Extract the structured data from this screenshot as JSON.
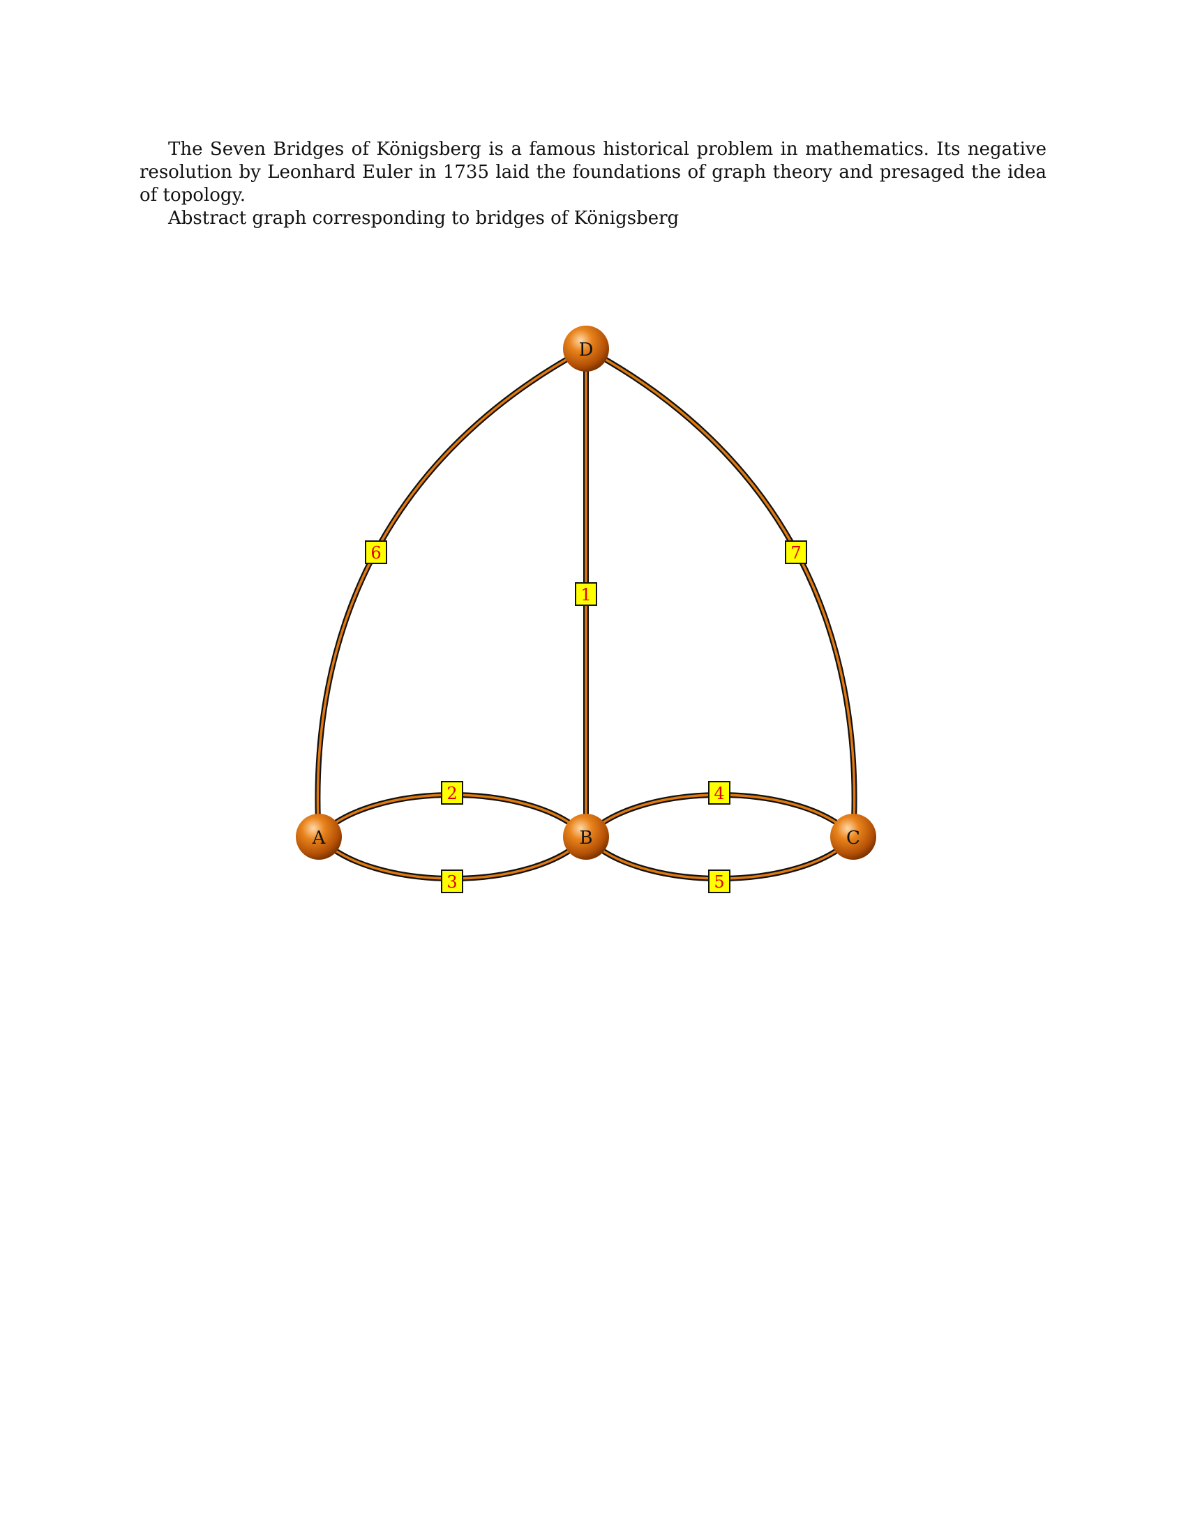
{
  "text": {
    "paragraph1": "The Seven Bridges of Königsberg is a famous historical problem in mathematics. Its negative resolution by Leonhard Euler in 1735 laid the foundations of graph theory and presaged the idea of topology.",
    "paragraph2": "Abstract graph corresponding to bridges of Königsberg"
  },
  "graph": {
    "nodes": [
      {
        "id": "D",
        "label": "D"
      },
      {
        "id": "A",
        "label": "A"
      },
      {
        "id": "B",
        "label": "B"
      },
      {
        "id": "C",
        "label": "C"
      }
    ],
    "bridges": [
      {
        "label": "1",
        "from": "D",
        "to": "B"
      },
      {
        "label": "2",
        "from": "A",
        "to": "B"
      },
      {
        "label": "3",
        "from": "A",
        "to": "B"
      },
      {
        "label": "4",
        "from": "B",
        "to": "C"
      },
      {
        "label": "5",
        "from": "B",
        "to": "C"
      },
      {
        "label": "6",
        "from": "A",
        "to": "D"
      },
      {
        "label": "7",
        "from": "C",
        "to": "D"
      }
    ],
    "colors": {
      "node": "#d4650a",
      "edge": "#e07a10",
      "label_box": "#ffff00",
      "label_text": "#e00000"
    }
  }
}
